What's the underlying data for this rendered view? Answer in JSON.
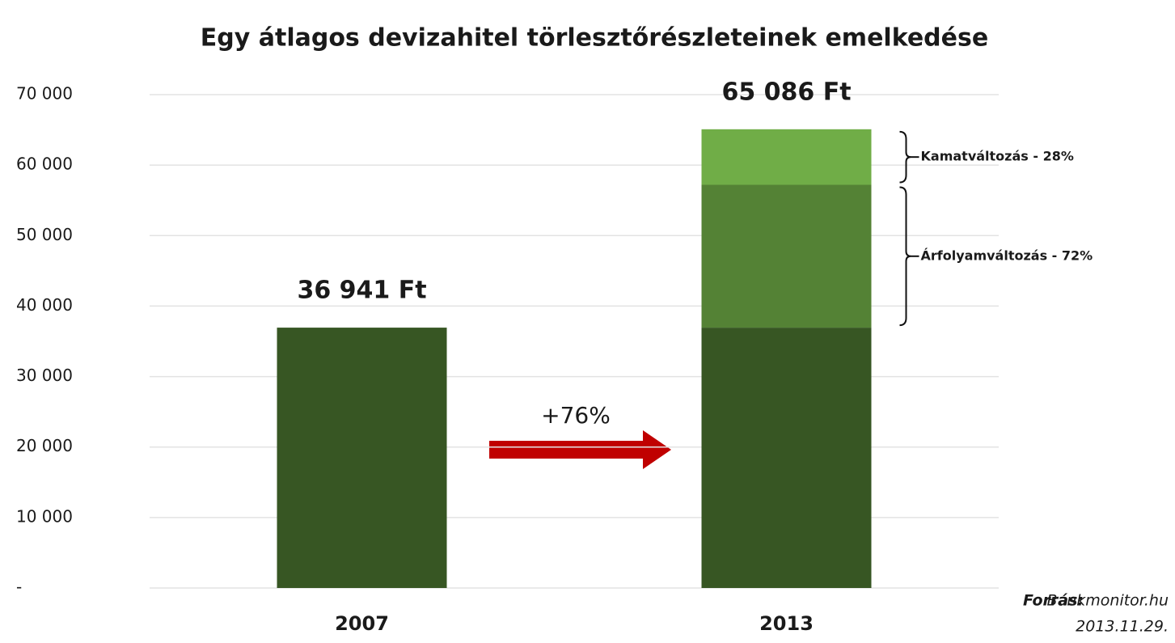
{
  "chart_data": {
    "type": "stacked_bar",
    "title": "Egy átlagos devizahitel törlesztőrészleteinek emelkedése",
    "categories": [
      "2007",
      "2013"
    ],
    "series": [
      {
        "color": "#375623",
        "values": [
          36941,
          36941
        ]
      },
      {
        "name": "Árfolyamváltozás  - 72%",
        "color": "#548235",
        "values": [
          null,
          20264
        ]
      },
      {
        "name": "Kamatváltozás  - 28%",
        "color": "#70ad47",
        "values": [
          null,
          7881
        ]
      }
    ],
    "totals": [
      36941,
      65086
    ],
    "total_labels": [
      "36 941 Ft",
      "65 086 Ft"
    ],
    "annotation": "+76%",
    "source_label": "Forrás:",
    "source_text": "Bankmonitor.hu",
    "source_date": "2013.11.29.",
    "ylim": [
      0,
      70000
    ],
    "yticks": [
      {
        "value": 0,
        "label": "-"
      },
      {
        "value": 10000,
        "label": "10 000"
      },
      {
        "value": 20000,
        "label": "20 000"
      },
      {
        "value": 30000,
        "label": "30 000"
      },
      {
        "value": 40000,
        "label": "40 000"
      },
      {
        "value": 50000,
        "label": "50 000"
      },
      {
        "value": 60000,
        "label": "60 000"
      },
      {
        "value": 70000,
        "label": "70 000"
      }
    ],
    "grid": true
  }
}
